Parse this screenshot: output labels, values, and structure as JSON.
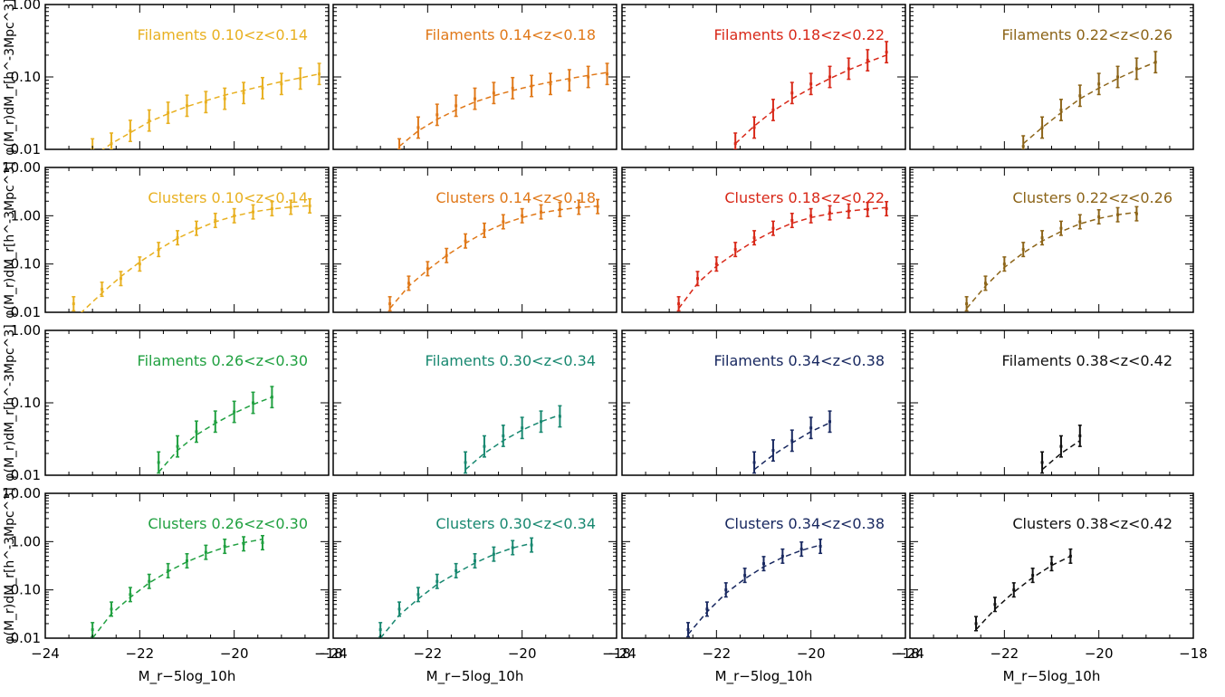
{
  "figure": {
    "ylabel_filaments": "φ(M_r)dM_r[h^-3Mpc^3]",
    "ylabel_clusters": "φ(M_r)dM_r[h^-3Mpc^3]",
    "xlabel": "M_r−5log_10h"
  },
  "chart_data": [
    {
      "type": "line",
      "panel_label": "Filaments 0.10<z<0.14",
      "color": "#E8B020",
      "x": [
        -23.0,
        -22.6,
        -22.2,
        -21.8,
        -21.4,
        -21.0,
        -20.6,
        -20.2,
        -19.8,
        -19.4,
        -19.0,
        -18.6,
        -18.2
      ],
      "y": [
        0.01,
        0.012,
        0.018,
        0.025,
        0.032,
        0.04,
        0.045,
        0.05,
        0.06,
        0.07,
        0.08,
        0.095,
        0.11
      ],
      "fit_y": [
        0.008,
        0.012,
        0.017,
        0.024,
        0.031,
        0.039,
        0.047,
        0.056,
        0.065,
        0.075,
        0.086,
        0.097,
        0.11
      ],
      "xlim": [
        -24,
        -18
      ],
      "ylim": [
        0.01,
        1.0
      ],
      "ytick_labels": [
        "0.01",
        "0.10",
        "1.00"
      ],
      "xticks": [
        -24,
        -22,
        -20,
        -18
      ],
      "yscale": "log"
    },
    {
      "type": "line",
      "panel_label": "Filaments 0.14<z<0.18",
      "color": "#E07818",
      "x": [
        -22.6,
        -22.2,
        -21.8,
        -21.4,
        -21.0,
        -20.6,
        -20.2,
        -19.8,
        -19.4,
        -19.0,
        -18.6,
        -18.2
      ],
      "y": [
        0.01,
        0.02,
        0.03,
        0.04,
        0.05,
        0.06,
        0.07,
        0.075,
        0.08,
        0.09,
        0.1,
        0.11
      ],
      "fit_y": [
        0.011,
        0.018,
        0.026,
        0.035,
        0.045,
        0.055,
        0.065,
        0.075,
        0.085,
        0.095,
        0.105,
        0.115
      ],
      "xlim": [
        -24,
        -18
      ],
      "ylim": [
        0.01,
        1.0
      ],
      "ytick_labels": [
        "0.01",
        "0.10",
        "1.00"
      ],
      "xticks": [
        -24,
        -22,
        -20,
        -18
      ],
      "yscale": "log"
    },
    {
      "type": "line",
      "panel_label": "Filaments 0.18<z<0.22",
      "color": "#D82818",
      "x": [
        -21.6,
        -21.2,
        -20.8,
        -20.4,
        -20.0,
        -19.6,
        -19.2,
        -18.8,
        -18.4
      ],
      "y": [
        0.012,
        0.02,
        0.035,
        0.06,
        0.08,
        0.1,
        0.13,
        0.17,
        0.22
      ],
      "fit_y": [
        0.012,
        0.021,
        0.034,
        0.05,
        0.07,
        0.095,
        0.125,
        0.16,
        0.2
      ],
      "xlim": [
        -24,
        -18
      ],
      "ylim": [
        0.01,
        1.0
      ],
      "ytick_labels": [
        "0.01",
        "0.10",
        "1.00"
      ],
      "xticks": [
        -24,
        -22,
        -20,
        -18
      ],
      "yscale": "log"
    },
    {
      "type": "line",
      "panel_label": "Filaments 0.22<z<0.26",
      "color": "#8C6418",
      "x": [
        -21.6,
        -21.2,
        -20.8,
        -20.4,
        -20.0,
        -19.6,
        -19.2,
        -18.8
      ],
      "y": [
        0.011,
        0.02,
        0.035,
        0.055,
        0.08,
        0.1,
        0.13,
        0.16
      ],
      "fit_y": [
        0.012,
        0.02,
        0.032,
        0.05,
        0.07,
        0.095,
        0.125,
        0.16
      ],
      "xlim": [
        -24,
        -18
      ],
      "ylim": [
        0.01,
        1.0
      ],
      "ytick_labels": [
        "0.01",
        "0.10",
        "1.00"
      ],
      "xticks": [
        -24,
        -22,
        -20,
        -18
      ],
      "yscale": "log"
    },
    {
      "type": "line",
      "panel_label": "Clusters 0.10<z<0.14",
      "color": "#E8B020",
      "x": [
        -23.4,
        -22.8,
        -22.4,
        -22.0,
        -21.6,
        -21.2,
        -20.8,
        -20.4,
        -20.0,
        -19.6,
        -19.2,
        -18.8,
        -18.4
      ],
      "y": [
        0.015,
        0.03,
        0.05,
        0.1,
        0.2,
        0.35,
        0.55,
        0.8,
        1.0,
        1.2,
        1.4,
        1.5,
        1.6
      ],
      "fit_y": [
        0.007,
        0.025,
        0.055,
        0.11,
        0.2,
        0.34,
        0.52,
        0.75,
        0.98,
        1.2,
        1.38,
        1.52,
        1.62
      ],
      "xlim": [
        -24,
        -18
      ],
      "ylim": [
        0.01,
        10.0
      ],
      "ytick_labels": [
        "0.01",
        "0.10",
        "1.00",
        "10.00"
      ],
      "xticks": [
        -24,
        -22,
        -20,
        -18
      ],
      "yscale": "log"
    },
    {
      "type": "line",
      "panel_label": "Clusters 0.14<z<0.18",
      "color": "#E07818",
      "x": [
        -22.8,
        -22.4,
        -22.0,
        -21.6,
        -21.2,
        -20.8,
        -20.4,
        -20.0,
        -19.6,
        -19.2,
        -18.8,
        -18.4
      ],
      "y": [
        0.015,
        0.04,
        0.08,
        0.15,
        0.3,
        0.5,
        0.75,
        1.0,
        1.2,
        1.35,
        1.5,
        1.55
      ],
      "fit_y": [
        0.012,
        0.035,
        0.075,
        0.15,
        0.27,
        0.45,
        0.68,
        0.92,
        1.15,
        1.33,
        1.48,
        1.58
      ],
      "xlim": [
        -24,
        -18
      ],
      "ylim": [
        0.01,
        10.0
      ],
      "ytick_labels": [
        "0.01",
        "0.10",
        "1.00",
        "10.00"
      ],
      "xticks": [
        -24,
        -22,
        -20,
        -18
      ],
      "yscale": "log"
    },
    {
      "type": "line",
      "panel_label": "Clusters 0.18<z<0.22",
      "color": "#D82818",
      "x": [
        -22.8,
        -22.4,
        -22.0,
        -21.6,
        -21.2,
        -20.8,
        -20.4,
        -20.0,
        -19.6,
        -19.2,
        -18.8,
        -18.4
      ],
      "y": [
        0.015,
        0.05,
        0.1,
        0.2,
        0.35,
        0.55,
        0.8,
        1.0,
        1.15,
        1.25,
        1.35,
        1.4
      ],
      "fit_y": [
        0.012,
        0.04,
        0.09,
        0.17,
        0.3,
        0.48,
        0.7,
        0.92,
        1.1,
        1.25,
        1.38,
        1.48
      ],
      "xlim": [
        -24,
        -18
      ],
      "ylim": [
        0.01,
        10.0
      ],
      "ytick_labels": [
        "0.01",
        "0.10",
        "1.00",
        "10.00"
      ],
      "xticks": [
        -24,
        -22,
        -20,
        -18
      ],
      "yscale": "log"
    },
    {
      "type": "line",
      "panel_label": "Clusters 0.22<z<0.26",
      "color": "#8C6418",
      "x": [
        -22.8,
        -22.4,
        -22.0,
        -21.6,
        -21.2,
        -20.8,
        -20.4,
        -20.0,
        -19.6,
        -19.2
      ],
      "y": [
        0.015,
        0.04,
        0.1,
        0.2,
        0.35,
        0.55,
        0.75,
        0.95,
        1.05,
        1.1
      ],
      "fit_y": [
        0.012,
        0.035,
        0.085,
        0.17,
        0.3,
        0.47,
        0.68,
        0.88,
        1.05,
        1.18
      ],
      "xlim": [
        -24,
        -18
      ],
      "ylim": [
        0.01,
        10.0
      ],
      "ytick_labels": [
        "0.01",
        "0.10",
        "1.00",
        "10.00"
      ],
      "xticks": [
        -24,
        -22,
        -20,
        -18
      ],
      "yscale": "log"
    },
    {
      "type": "line",
      "panel_label": "Filaments 0.26<z<0.30",
      "color": "#20A040",
      "x": [
        -21.6,
        -21.2,
        -20.8,
        -20.4,
        -20.0,
        -19.6,
        -19.2
      ],
      "y": [
        0.015,
        0.025,
        0.04,
        0.055,
        0.075,
        0.1,
        0.12
      ],
      "fit_y": [
        0.011,
        0.022,
        0.036,
        0.052,
        0.072,
        0.095,
        0.12
      ],
      "xlim": [
        -24,
        -18
      ],
      "ylim": [
        0.01,
        1.0
      ],
      "ytick_labels": [
        "0.01",
        "0.10",
        "1.00"
      ],
      "xticks": [
        -24,
        -22,
        -20,
        -18
      ],
      "yscale": "log"
    },
    {
      "type": "line",
      "panel_label": "Filaments 0.30<z<0.34",
      "color": "#188870",
      "x": [
        -21.2,
        -20.8,
        -20.4,
        -20.0,
        -19.6,
        -19.2
      ],
      "y": [
        0.015,
        0.025,
        0.035,
        0.045,
        0.055,
        0.065
      ],
      "fit_y": [
        0.012,
        0.02,
        0.03,
        0.042,
        0.055,
        0.068
      ],
      "xlim": [
        -24,
        -18
      ],
      "ylim": [
        0.01,
        1.0
      ],
      "ytick_labels": [
        "0.01",
        "0.10",
        "1.00"
      ],
      "xticks": [
        -24,
        -22,
        -20,
        -18
      ],
      "yscale": "log"
    },
    {
      "type": "line",
      "panel_label": "Filaments 0.34<z<0.38",
      "color": "#182860",
      "x": [
        -21.2,
        -20.8,
        -20.4,
        -20.0,
        -19.6
      ],
      "y": [
        0.015,
        0.022,
        0.03,
        0.045,
        0.055
      ],
      "fit_y": [
        0.012,
        0.019,
        0.028,
        0.04,
        0.053
      ],
      "xlim": [
        -24,
        -18
      ],
      "ylim": [
        0.01,
        1.0
      ],
      "ytick_labels": [
        "0.01",
        "0.10",
        "1.00"
      ],
      "xticks": [
        -24,
        -22,
        -20,
        -18
      ],
      "yscale": "log"
    },
    {
      "type": "line",
      "panel_label": "Filaments 0.38<z<0.42",
      "color": "#101010",
      "x": [
        -21.2,
        -20.8,
        -20.4
      ],
      "y": [
        0.015,
        0.025,
        0.035
      ],
      "fit_y": [
        0.012,
        0.02,
        0.03
      ],
      "xlim": [
        -24,
        -18
      ],
      "ylim": [
        0.01,
        1.0
      ],
      "ytick_labels": [
        "0.01",
        "0.10",
        "1.00"
      ],
      "xticks": [
        -24,
        -22,
        -20,
        -18
      ],
      "yscale": "log"
    },
    {
      "type": "line",
      "panel_label": "Clusters 0.26<z<0.30",
      "color": "#20A040",
      "x": [
        -23.0,
        -22.6,
        -22.2,
        -21.8,
        -21.4,
        -21.0,
        -20.6,
        -20.2,
        -19.8,
        -19.4
      ],
      "y": [
        0.015,
        0.04,
        0.08,
        0.15,
        0.25,
        0.4,
        0.6,
        0.8,
        0.9,
        0.95
      ],
      "fit_y": [
        0.01,
        0.032,
        0.07,
        0.14,
        0.24,
        0.38,
        0.56,
        0.76,
        0.95,
        1.12
      ],
      "xlim": [
        -24,
        -18
      ],
      "ylim": [
        0.01,
        10.0
      ],
      "ytick_labels": [
        "0.01",
        "0.10",
        "1.00",
        "10.00"
      ],
      "xticks": [
        -24,
        -22,
        -20,
        -18
      ],
      "yscale": "log"
    },
    {
      "type": "line",
      "panel_label": "Clusters 0.30<z<0.34",
      "color": "#188870",
      "x": [
        -23.0,
        -22.6,
        -22.2,
        -21.8,
        -21.4,
        -21.0,
        -20.6,
        -20.2,
        -19.8
      ],
      "y": [
        0.015,
        0.04,
        0.08,
        0.15,
        0.25,
        0.4,
        0.55,
        0.75,
        0.85
      ],
      "fit_y": [
        0.01,
        0.03,
        0.065,
        0.13,
        0.22,
        0.36,
        0.54,
        0.74,
        0.92
      ],
      "xlim": [
        -24,
        -18
      ],
      "ylim": [
        0.01,
        10.0
      ],
      "ytick_labels": [
        "0.01",
        "0.10",
        "1.00",
        "10.00"
      ],
      "xticks": [
        -24,
        -22,
        -20,
        -18
      ],
      "yscale": "log"
    },
    {
      "type": "line",
      "panel_label": "Clusters 0.34<z<0.38",
      "color": "#182860",
      "x": [
        -22.6,
        -22.2,
        -21.8,
        -21.4,
        -21.0,
        -20.6,
        -20.2,
        -19.8
      ],
      "y": [
        0.015,
        0.04,
        0.1,
        0.2,
        0.35,
        0.5,
        0.7,
        0.8
      ],
      "fit_y": [
        0.012,
        0.035,
        0.085,
        0.17,
        0.3,
        0.47,
        0.66,
        0.85
      ],
      "xlim": [
        -24,
        -18
      ],
      "ylim": [
        0.01,
        10.0
      ],
      "ytick_labels": [
        "0.01",
        "0.10",
        "1.00",
        "10.00"
      ],
      "xticks": [
        -24,
        -22,
        -20,
        -18
      ],
      "yscale": "log"
    },
    {
      "type": "line",
      "panel_label": "Clusters 0.38<z<0.42",
      "color": "#101010",
      "x": [
        -22.6,
        -22.2,
        -21.8,
        -21.4,
        -21.0,
        -20.6
      ],
      "y": [
        0.02,
        0.05,
        0.1,
        0.2,
        0.35,
        0.5
      ],
      "fit_y": [
        0.015,
        0.04,
        0.09,
        0.18,
        0.32,
        0.5
      ],
      "xlim": [
        -24,
        -18
      ],
      "ylim": [
        0.01,
        10.0
      ],
      "ytick_labels": [
        "0.01",
        "0.10",
        "1.00",
        "10.00"
      ],
      "xticks": [
        -24,
        -22,
        -20,
        -18
      ],
      "yscale": "log"
    }
  ]
}
